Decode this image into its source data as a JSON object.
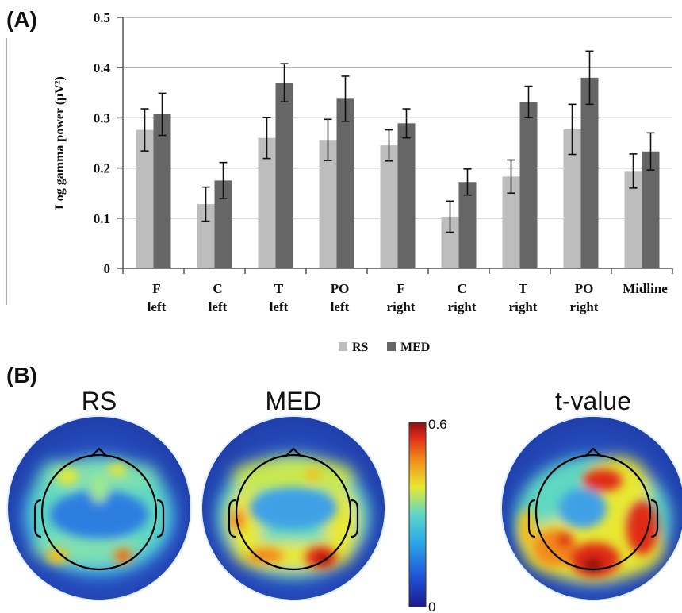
{
  "panel_a_label": "(A)",
  "panel_b_label": "(B)",
  "chart_data": {
    "type": "bar",
    "ylabel": "Log gamma power (μV²)",
    "ylim": [
      0,
      0.5
    ],
    "yticks": [
      "0",
      "0.1",
      "0.2",
      "0.3",
      "0.4",
      "0.5"
    ],
    "grid": true,
    "legend_position": "bottom",
    "categories": [
      [
        "F",
        "left"
      ],
      [
        "C",
        "left"
      ],
      [
        "T",
        "left"
      ],
      [
        "PO",
        "left"
      ],
      [
        "F",
        "right"
      ],
      [
        "C",
        "right"
      ],
      [
        "T",
        "right"
      ],
      [
        "PO",
        "right"
      ],
      [
        "Midline"
      ]
    ],
    "series": [
      {
        "name": "RS",
        "color": "#bdbdbd",
        "values": [
          0.276,
          0.128,
          0.26,
          0.256,
          0.245,
          0.103,
          0.183,
          0.277,
          0.194
        ],
        "errors": [
          0.042,
          0.034,
          0.041,
          0.041,
          0.031,
          0.031,
          0.033,
          0.05,
          0.034
        ]
      },
      {
        "name": "MED",
        "color": "#666666",
        "values": [
          0.307,
          0.175,
          0.37,
          0.338,
          0.289,
          0.172,
          0.332,
          0.38,
          0.233
        ],
        "errors": [
          0.042,
          0.036,
          0.038,
          0.045,
          0.029,
          0.026,
          0.031,
          0.053,
          0.037
        ]
      }
    ]
  },
  "topomaps": {
    "titles": [
      "RS",
      "MED",
      "t-value"
    ],
    "colorbar": {
      "max_label": "0.6",
      "min_label": "0"
    }
  }
}
